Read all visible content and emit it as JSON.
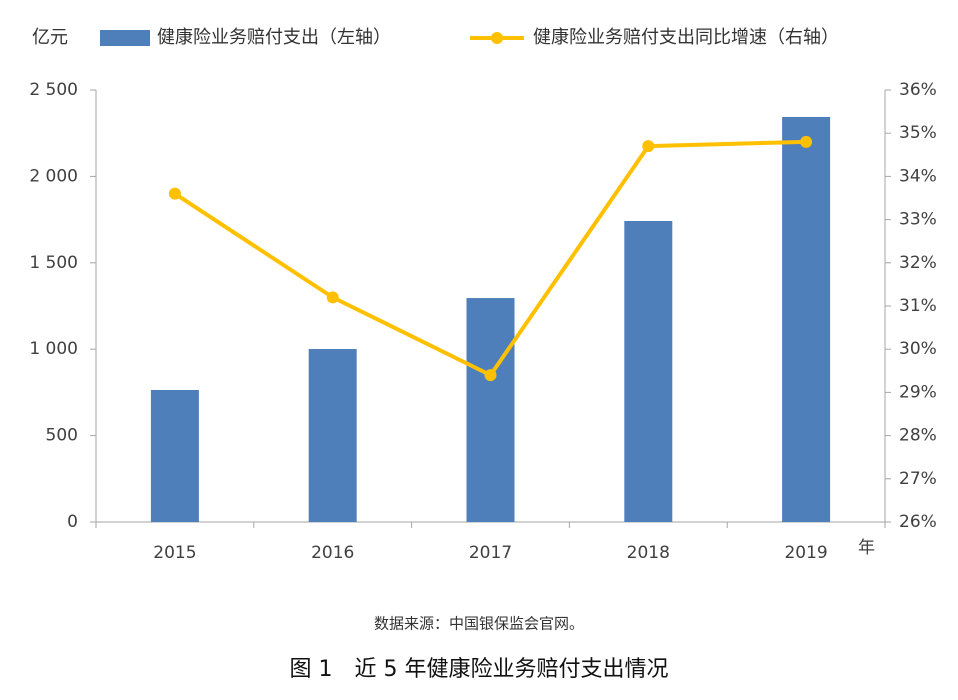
{
  "chart_data": {
    "type": "combo",
    "title": "图 1　近 5 年健康险业务赔付支出情况",
    "source": "数据来源：中国银保监会官网。",
    "y_unit": "亿元",
    "x_unit": "年",
    "categories": [
      "2015",
      "2016",
      "2017",
      "2018",
      "2019"
    ],
    "series": [
      {
        "name": "健康险业务赔付支出（左轴）",
        "type": "bar",
        "color": "#4e7fbb",
        "values": [
          764,
          1001,
          1296,
          1742,
          2344
        ]
      },
      {
        "name": "健康险业务赔付支出同比增速（右轴）",
        "type": "line",
        "axis": "y2",
        "color": "#ffc000",
        "values": [
          33.6,
          31.2,
          29.4,
          34.7,
          34.8
        ]
      }
    ],
    "ylim": [
      0,
      2500
    ],
    "yticks": [
      0,
      500,
      {
        "value": 1000,
        "label": "1 000"
      },
      {
        "value": 1500,
        "label": "1 500"
      },
      {
        "value": 2000,
        "label": "2 000"
      },
      {
        "value": 2500,
        "label": "2 500"
      }
    ],
    "y2lim": [
      26,
      36
    ],
    "y2ticks": [
      {
        "value": 26,
        "label": "26%"
      },
      {
        "value": 27,
        "label": "27%"
      },
      {
        "value": 28,
        "label": "28%"
      },
      {
        "value": 29,
        "label": "29%"
      },
      {
        "value": 30,
        "label": "30%"
      },
      {
        "value": 31,
        "label": "31%"
      },
      {
        "value": 32,
        "label": "32%"
      },
      {
        "value": 33,
        "label": "33%"
      },
      {
        "value": 34,
        "label": "34%"
      },
      {
        "value": 35,
        "label": "35%"
      },
      {
        "value": 36,
        "label": "36%"
      }
    ]
  }
}
